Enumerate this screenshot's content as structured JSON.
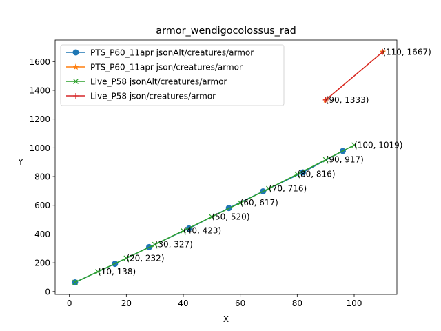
{
  "chart_data": {
    "type": "line",
    "title": "armor_wendigocolossus_rad",
    "xlabel": "X",
    "ylabel": "Y",
    "xlim": [
      -5,
      115
    ],
    "ylim": [
      -20,
      1750
    ],
    "xticks": [
      0,
      20,
      40,
      60,
      80,
      100
    ],
    "yticks": [
      0,
      200,
      400,
      600,
      800,
      1000,
      1200,
      1400,
      1600
    ],
    "legend_position": "top-left",
    "series": [
      {
        "name": "PTS_P60_11apr jsonAlt/creatures/armor",
        "color": "#1f77b4",
        "marker": "circle",
        "x": [
          2,
          16,
          28,
          42,
          56,
          68,
          82,
          96
        ],
        "y": [
          64,
          193,
          309,
          439,
          581,
          697,
          829,
          978
        ]
      },
      {
        "name": "PTS_P60_11apr json/creatures/armor",
        "color": "#ff7f0e",
        "marker": "star",
        "x": [
          90,
          110
        ],
        "y": [
          1333,
          1667
        ]
      },
      {
        "name": "Live_P58 jsonAlt/creatures/armor",
        "color": "#2ca02c",
        "marker": "x",
        "x": [
          2,
          10,
          20,
          30,
          40,
          50,
          60,
          70,
          80,
          90,
          100
        ],
        "y": [
          64,
          138,
          232,
          327,
          423,
          520,
          617,
          716,
          816,
          917,
          1019
        ]
      },
      {
        "name": "Live_P58 json/creatures/armor",
        "color": "#d62728",
        "marker": "plus",
        "x": [
          90,
          110
        ],
        "y": [
          1333,
          1667
        ]
      }
    ],
    "annotations": [
      {
        "text": "(10, 138)",
        "x": 10,
        "y": 138
      },
      {
        "text": "(20, 232)",
        "x": 20,
        "y": 232
      },
      {
        "text": "(30, 327)",
        "x": 30,
        "y": 327
      },
      {
        "text": "(40, 423)",
        "x": 40,
        "y": 423
      },
      {
        "text": "(50, 520)",
        "x": 50,
        "y": 520
      },
      {
        "text": "(60, 617)",
        "x": 60,
        "y": 617
      },
      {
        "text": "(70, 716)",
        "x": 70,
        "y": 716
      },
      {
        "text": "(80, 816)",
        "x": 80,
        "y": 816
      },
      {
        "text": "(90, 917)",
        "x": 90,
        "y": 917
      },
      {
        "text": "(100, 1019)",
        "x": 100,
        "y": 1019
      },
      {
        "text": "(90, 1333)",
        "x": 90,
        "y": 1333
      },
      {
        "text": "(110, 1667)",
        "x": 110,
        "y": 1667
      }
    ]
  }
}
